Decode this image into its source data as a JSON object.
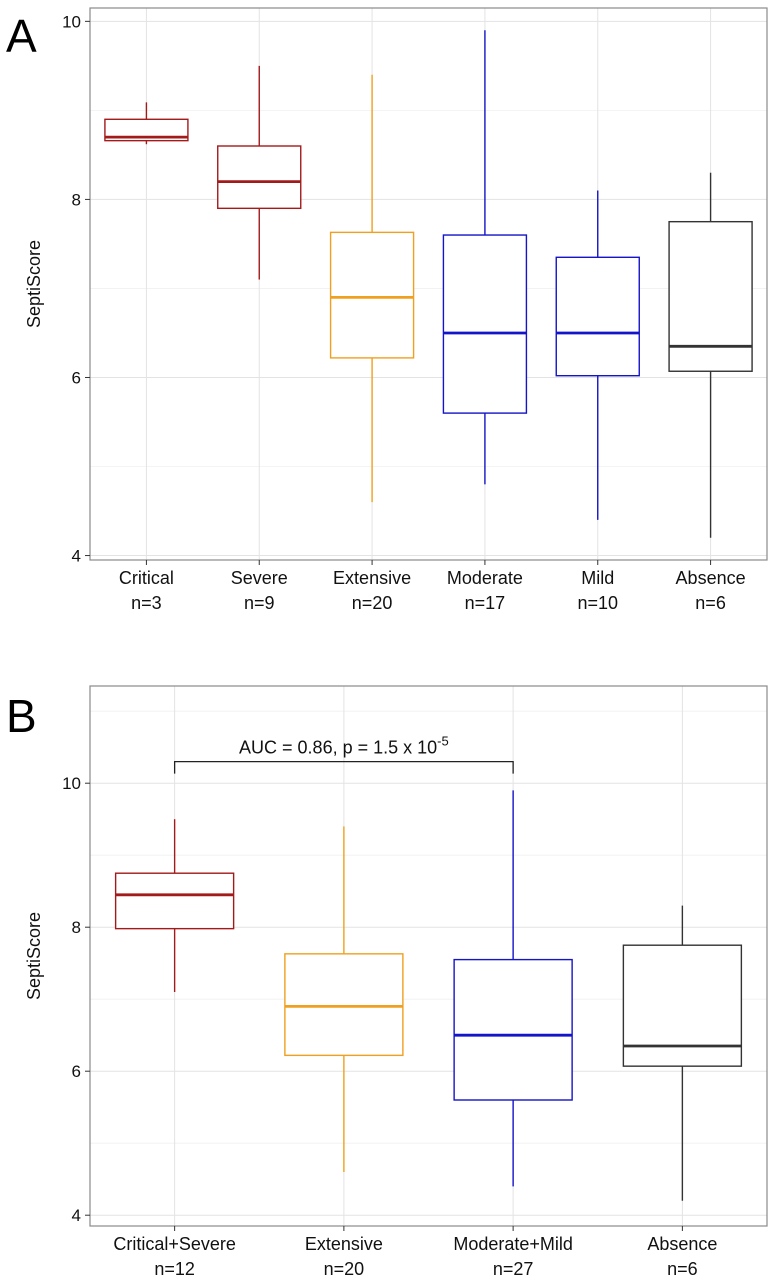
{
  "chart_data": [
    {
      "panel": "A",
      "type": "box",
      "ylabel": "SeptiScore",
      "ylim": [
        3.95,
        10.15
      ],
      "yticks": [
        4,
        6,
        8,
        10
      ],
      "grid": true,
      "categories": [
        {
          "name": "Critical",
          "n": "n=3",
          "color": "#a31a1a",
          "min": 8.62,
          "q1": 8.66,
          "median": 8.7,
          "q3": 8.9,
          "max": 9.09
        },
        {
          "name": "Severe",
          "n": "n=9",
          "color": "#a31a1a",
          "min": 7.1,
          "q1": 7.9,
          "median": 8.2,
          "q3": 8.6,
          "max": 9.5
        },
        {
          "name": "Extensive",
          "n": "n=20",
          "color": "#f0a020",
          "min": 4.6,
          "q1": 6.22,
          "median": 6.9,
          "q3": 7.63,
          "max": 9.4
        },
        {
          "name": "Moderate",
          "n": "n=17",
          "color": "#1414c8",
          "min": 4.8,
          "q1": 5.6,
          "median": 6.5,
          "q3": 7.6,
          "max": 9.9
        },
        {
          "name": "Mild",
          "n": "n=10",
          "color": "#1414c8",
          "min": 4.4,
          "q1": 6.02,
          "median": 6.5,
          "q3": 7.35,
          "max": 8.1
        },
        {
          "name": "Absence",
          "n": "n=6",
          "color": "#333333",
          "min": 4.2,
          "q1": 6.07,
          "median": 6.35,
          "q3": 7.75,
          "max": 8.3
        }
      ]
    },
    {
      "panel": "B",
      "type": "box",
      "ylabel": "SeptiScore",
      "ylim": [
        3.85,
        11.35
      ],
      "yticks": [
        4,
        6,
        8,
        10
      ],
      "grid": true,
      "annotation": {
        "text": "AUC = 0.86, p = 1.5 x 10",
        "superscript": "-5",
        "from_category": 0,
        "to_category": 2,
        "y": 10.3
      },
      "categories": [
        {
          "name": "Critical+Severe",
          "n": "n=12",
          "color": "#a31a1a",
          "min": 7.1,
          "q1": 7.98,
          "median": 8.45,
          "q3": 8.75,
          "max": 9.5
        },
        {
          "name": "Extensive",
          "n": "n=20",
          "color": "#f0a020",
          "min": 4.6,
          "q1": 6.22,
          "median": 6.9,
          "q3": 7.63,
          "max": 9.4
        },
        {
          "name": "Moderate+Mild",
          "n": "n=27",
          "color": "#1414c8",
          "min": 4.4,
          "q1": 5.6,
          "median": 6.5,
          "q3": 7.55,
          "max": 9.9
        },
        {
          "name": "Absence",
          "n": "n=6",
          "color": "#333333",
          "min": 4.2,
          "q1": 6.07,
          "median": 6.35,
          "q3": 7.75,
          "max": 8.3
        }
      ]
    }
  ]
}
